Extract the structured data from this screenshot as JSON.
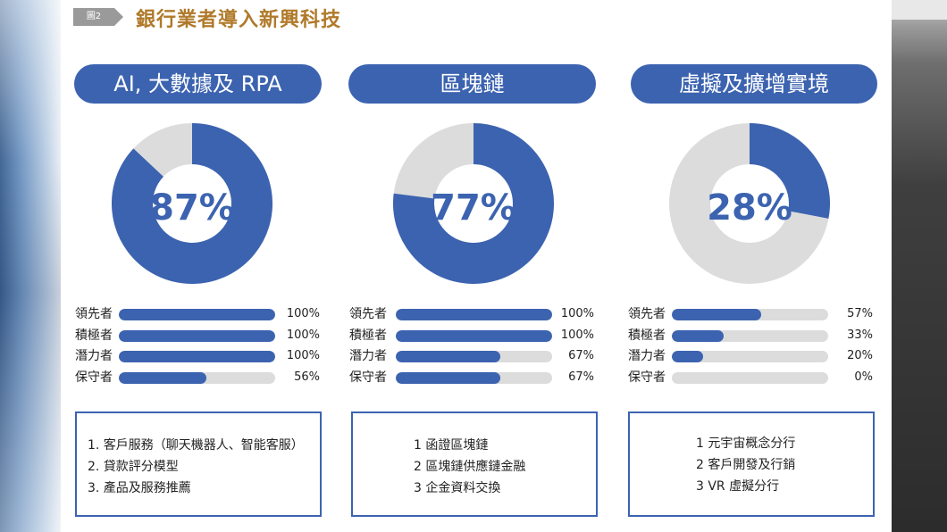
{
  "header": {
    "figure_tag": "圖2",
    "title": "銀行業者導入新興科技"
  },
  "colors": {
    "primary": "#3c63b0",
    "track": "#dcdcdc",
    "title": "#b07a2a"
  },
  "chart_data": [
    {
      "type": "pie",
      "title": "AI, 大數據及 RPA",
      "value": 87,
      "label": "87%",
      "bars": {
        "type": "bar",
        "orientation": "horizontal",
        "categories": [
          "領先者",
          "積極者",
          "潛力者",
          "保守者"
        ],
        "values": [
          100,
          100,
          100,
          56
        ],
        "labels": [
          "100%",
          "100%",
          "100%",
          "56%"
        ],
        "xlim": [
          0,
          100
        ]
      }
    },
    {
      "type": "pie",
      "title": "區塊鏈",
      "value": 77,
      "label": "77%",
      "bars": {
        "type": "bar",
        "orientation": "horizontal",
        "categories": [
          "領先者",
          "積極者",
          "潛力者",
          "保守者"
        ],
        "values": [
          100,
          100,
          67,
          67
        ],
        "labels": [
          "100%",
          "100%",
          "67%",
          "67%"
        ],
        "xlim": [
          0,
          100
        ]
      }
    },
    {
      "type": "pie",
      "title": "虛擬及擴增實境",
      "value": 28,
      "label": "28%",
      "bars": {
        "type": "bar",
        "orientation": "horizontal",
        "categories": [
          "領先者",
          "積極者",
          "潛力者",
          "保守者"
        ],
        "values": [
          57,
          33,
          20,
          0
        ],
        "labels": [
          "57%",
          "33%",
          "20%",
          "0%"
        ],
        "xlim": [
          0,
          100
        ]
      }
    }
  ],
  "boxes": [
    {
      "items": [
        "1. 客戶服務（聊天機器人、智能客服）",
        "2. 貸款評分模型",
        "3. 產品及服務推薦"
      ]
    },
    {
      "items": [
        "1 函證區塊鏈",
        "2 區塊鏈供應鏈金融",
        "3 企金資料交換"
      ]
    },
    {
      "items": [
        "1 元宇宙概念分行",
        "2 客戶開發及行銷",
        "3 VR 虛擬分行"
      ]
    }
  ]
}
